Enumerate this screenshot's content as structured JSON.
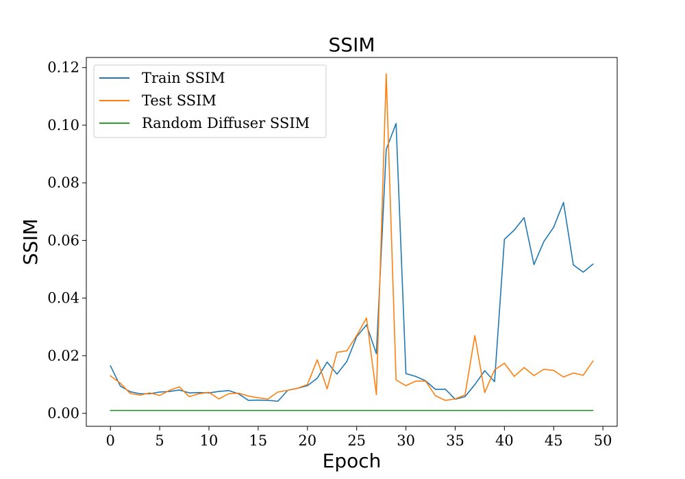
{
  "chart_data": {
    "type": "line",
    "title": "SSIM",
    "xlabel": "Epoch",
    "ylabel": "SSIM",
    "xlim": [
      -2.45,
      51.45
    ],
    "ylim": [
      -0.0045,
      0.1235
    ],
    "xticks": [
      0,
      5,
      10,
      15,
      20,
      25,
      30,
      35,
      40,
      45,
      50
    ],
    "xtick_labels": [
      "0",
      "5",
      "10",
      "15",
      "20",
      "25",
      "30",
      "35",
      "40",
      "45",
      "50"
    ],
    "yticks": [
      0.0,
      0.02,
      0.04,
      0.06,
      0.08,
      0.1,
      0.12
    ],
    "ytick_labels": [
      "0.00",
      "0.02",
      "0.04",
      "0.06",
      "0.08",
      "0.10",
      "0.12"
    ],
    "grid": false,
    "legend_position": "top-left",
    "x": [
      0,
      1,
      2,
      3,
      4,
      5,
      6,
      7,
      8,
      9,
      10,
      11,
      12,
      13,
      14,
      15,
      16,
      17,
      18,
      19,
      20,
      21,
      22,
      23,
      24,
      25,
      26,
      27,
      28,
      29,
      30,
      31,
      32,
      33,
      34,
      35,
      36,
      37,
      38,
      39,
      40,
      41,
      42,
      43,
      44,
      45,
      46,
      47,
      48,
      49
    ],
    "series": [
      {
        "name": "Train SSIM",
        "color": "#1f77b4",
        "values": [
          0.0165,
          0.0095,
          0.0075,
          0.0068,
          0.0068,
          0.0074,
          0.0076,
          0.0081,
          0.0071,
          0.0072,
          0.0071,
          0.0076,
          0.0079,
          0.0068,
          0.0045,
          0.0046,
          0.0045,
          0.0042,
          0.008,
          0.0087,
          0.0096,
          0.0122,
          0.0178,
          0.0136,
          0.018,
          0.0266,
          0.0307,
          0.0207,
          0.0916,
          0.1006,
          0.0138,
          0.0128,
          0.0113,
          0.0083,
          0.0084,
          0.0049,
          0.0058,
          0.01,
          0.0148,
          0.011,
          0.0604,
          0.0636,
          0.0679,
          0.0516,
          0.0596,
          0.0646,
          0.0732,
          0.0515,
          0.049,
          0.0518
        ]
      },
      {
        "name": "Test SSIM",
        "color": "#ff7f0e",
        "values": [
          0.013,
          0.0105,
          0.0069,
          0.0063,
          0.0071,
          0.0062,
          0.008,
          0.0092,
          0.0058,
          0.0068,
          0.0073,
          0.005,
          0.0068,
          0.007,
          0.006,
          0.0054,
          0.005,
          0.0074,
          0.008,
          0.0087,
          0.01,
          0.0186,
          0.0085,
          0.0212,
          0.0217,
          0.027,
          0.0331,
          0.0065,
          0.1178,
          0.0116,
          0.0096,
          0.0112,
          0.0112,
          0.0061,
          0.0045,
          0.005,
          0.0064,
          0.027,
          0.0072,
          0.0151,
          0.0174,
          0.0128,
          0.0159,
          0.0131,
          0.0153,
          0.0149,
          0.0126,
          0.014,
          0.0132,
          0.0182
        ]
      },
      {
        "name": "Random Diffuser SSIM",
        "color": "#2ca02c",
        "values": [
          0.001,
          0.001,
          0.001,
          0.001,
          0.001,
          0.001,
          0.001,
          0.001,
          0.001,
          0.001,
          0.001,
          0.001,
          0.001,
          0.001,
          0.001,
          0.001,
          0.001,
          0.001,
          0.001,
          0.001,
          0.001,
          0.001,
          0.001,
          0.001,
          0.001,
          0.001,
          0.001,
          0.001,
          0.001,
          0.001,
          0.001,
          0.001,
          0.001,
          0.001,
          0.001,
          0.001,
          0.001,
          0.001,
          0.001,
          0.001,
          0.001,
          0.001,
          0.001,
          0.001,
          0.001,
          0.001,
          0.001,
          0.001,
          0.001,
          0.001
        ]
      }
    ]
  }
}
